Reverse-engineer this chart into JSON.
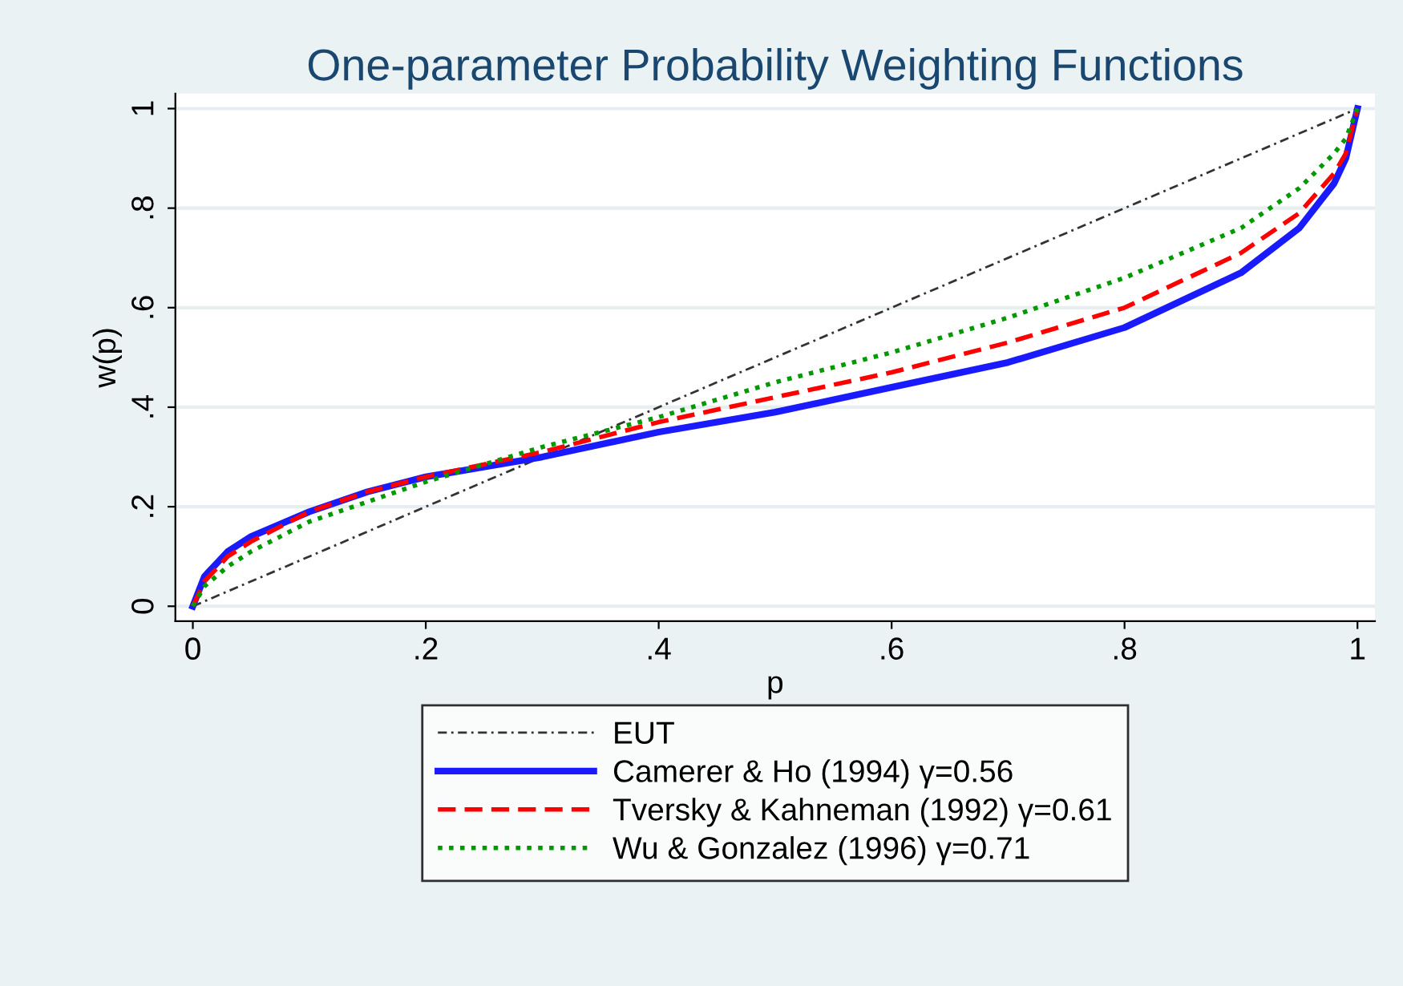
{
  "chart_data": {
    "type": "line",
    "title": "One-parameter Probability Weighting Functions",
    "xlabel": "p",
    "ylabel": "w(p)",
    "xlim": [
      -0.015,
      1.015
    ],
    "ylim": [
      -0.03,
      1.03
    ],
    "xticks": [
      0,
      {
        "value": 0.2,
        "label": ".2"
      },
      {
        "value": 0.4,
        "label": ".4"
      },
      {
        "value": 0.6,
        "label": ".6"
      },
      {
        "value": 0.8,
        "label": ".8"
      },
      1
    ],
    "yticks": [
      0,
      {
        "value": 0.2,
        "label": ".2"
      },
      {
        "value": 0.4,
        "label": ".4"
      },
      {
        "value": 0.6,
        "label": ".6"
      },
      {
        "value": 0.8,
        "label": ".8"
      },
      1
    ],
    "grid": "y",
    "legend": "bottom",
    "x": [
      0,
      0.01,
      0.03,
      0.05,
      0.1,
      0.15,
      0.2,
      0.3,
      0.4,
      0.5,
      0.6,
      0.7,
      0.8,
      0.9,
      0.95,
      0.98,
      0.99,
      1
    ],
    "series": [
      {
        "name": "EUT",
        "color": "#333333",
        "line_style": "dashdot",
        "x": [
          0,
          1
        ],
        "values": [
          0,
          1
        ]
      },
      {
        "name": "Camerer & Ho (1994) γ=0.56",
        "color": "#1a1aff",
        "line_style": "solid",
        "values": [
          0,
          0.06,
          0.11,
          0.14,
          0.19,
          0.23,
          0.26,
          0.3,
          0.35,
          0.39,
          0.44,
          0.49,
          0.56,
          0.67,
          0.76,
          0.85,
          0.9,
          1
        ]
      },
      {
        "name": "Tversky & Kahneman (1992) γ=0.61",
        "color": "#ff0000",
        "line_style": "dashed",
        "values": [
          0,
          0.05,
          0.1,
          0.13,
          0.19,
          0.23,
          0.26,
          0.31,
          0.37,
          0.42,
          0.47,
          0.53,
          0.6,
          0.71,
          0.79,
          0.87,
          0.91,
          1
        ]
      },
      {
        "name": "Wu & Gonzalez (1996) γ=0.71",
        "color": "#009900",
        "line_style": "dotted",
        "values": [
          0,
          0.04,
          0.08,
          0.11,
          0.17,
          0.21,
          0.25,
          0.32,
          0.38,
          0.45,
          0.51,
          0.58,
          0.66,
          0.76,
          0.84,
          0.91,
          0.94,
          1
        ]
      }
    ]
  }
}
